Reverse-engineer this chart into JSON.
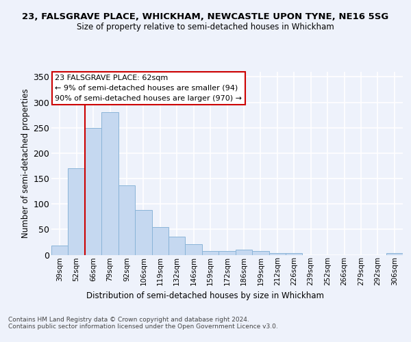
{
  "title1": "23, FALSGRAVE PLACE, WHICKHAM, NEWCASTLE UPON TYNE, NE16 5SG",
  "title2": "Size of property relative to semi-detached houses in Whickham",
  "xlabel": "Distribution of semi-detached houses by size in Whickham",
  "ylabel": "Number of semi-detached properties",
  "categories": [
    "39sqm",
    "52sqm",
    "66sqm",
    "79sqm",
    "92sqm",
    "106sqm",
    "119sqm",
    "132sqm",
    "146sqm",
    "159sqm",
    "172sqm",
    "186sqm",
    "199sqm",
    "212sqm",
    "226sqm",
    "239sqm",
    "252sqm",
    "266sqm",
    "279sqm",
    "292sqm",
    "306sqm"
  ],
  "values": [
    18,
    170,
    250,
    280,
    137,
    88,
    55,
    35,
    21,
    8,
    8,
    10,
    7,
    4,
    3,
    0,
    0,
    0,
    0,
    0,
    4
  ],
  "bar_color": "#c5d8f0",
  "bar_edge_color": "#8ab4d8",
  "vline_x": 1.5,
  "vline_color": "#cc0000",
  "annotation_text": "23 FALSGRAVE PLACE: 62sqm\n← 9% of semi-detached houses are smaller (94)\n90% of semi-detached houses are larger (970) →",
  "annotation_box_color": "#ffffff",
  "annotation_box_edge": "#cc0000",
  "ylim": [
    0,
    360
  ],
  "yticks": [
    0,
    50,
    100,
    150,
    200,
    250,
    300,
    350
  ],
  "footer": "Contains HM Land Registry data © Crown copyright and database right 2024.\nContains public sector information licensed under the Open Government Licence v3.0.",
  "bg_color": "#eef2fb",
  "grid_color": "#ffffff"
}
